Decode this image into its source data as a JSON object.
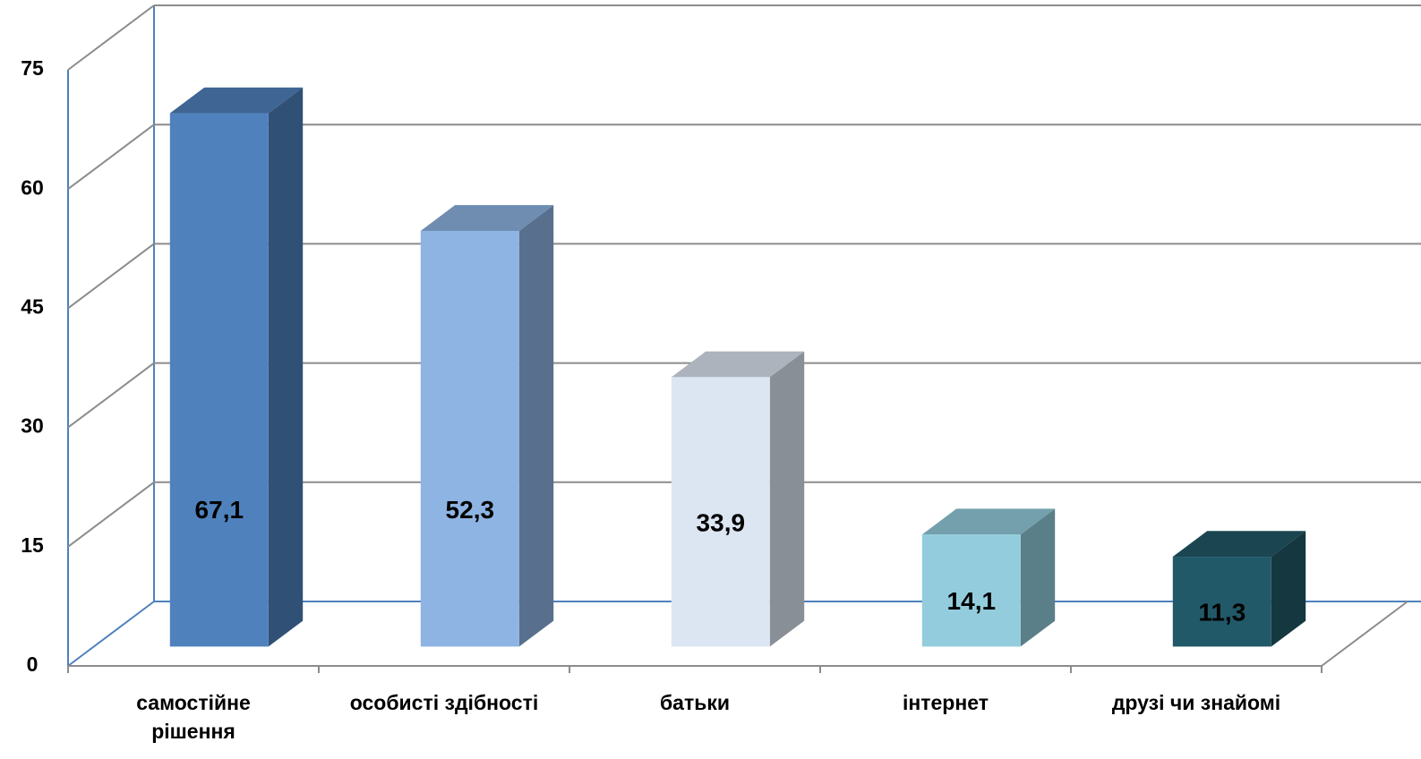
{
  "chart_data": {
    "type": "bar3d",
    "categories": [
      "самостійне\nрішення",
      "особисті здібності",
      "батьки",
      "інтернет",
      "друзі чи знайомі"
    ],
    "values": [
      67.1,
      52.3,
      33.9,
      14.1,
      11.3
    ],
    "value_labels": [
      "67,1",
      "52,3",
      "33,9",
      "14,1",
      "11,3"
    ],
    "colors": [
      "#4f81bd",
      "#8eb4e3",
      "#dce6f2",
      "#93cddd",
      "#215968"
    ],
    "ylim": [
      0,
      75
    ],
    "yticks": [
      0,
      15,
      30,
      45,
      60,
      75
    ],
    "grid": true
  }
}
